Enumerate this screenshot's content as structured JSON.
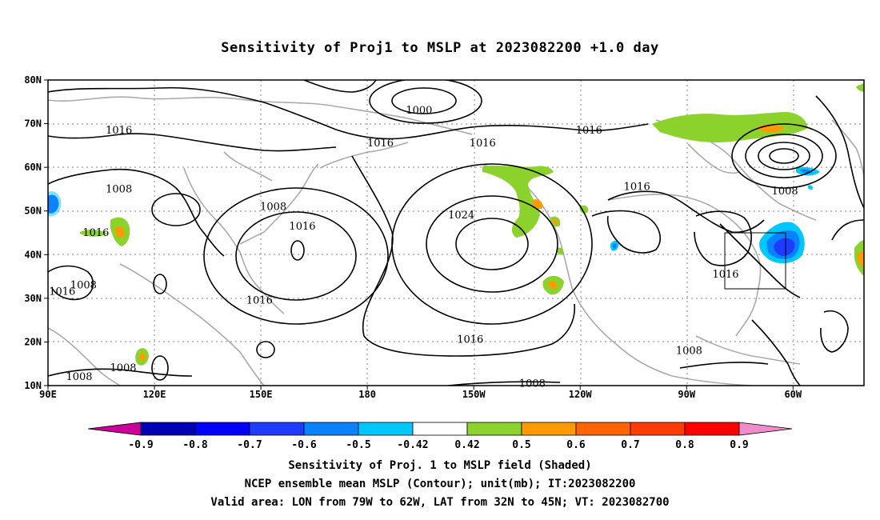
{
  "title": "Sensitivity of Proj1 to MSLP at 2023082200 +1.0 day",
  "lat_labels": [
    "80N",
    "70N",
    "60N",
    "50N",
    "40N",
    "30N",
    "20N",
    "10N"
  ],
  "lon_labels": [
    "90E",
    "120E",
    "150E",
    "180",
    "150W",
    "120W",
    "90W",
    "60W"
  ],
  "contour_labels": [
    {
      "text": "1000",
      "lon": 194.6,
      "lat": 73.0
    },
    {
      "text": "1016",
      "lon": 110.0,
      "lat": 68.5
    },
    {
      "text": "1016",
      "lon": 183.7,
      "lat": 65.5
    },
    {
      "text": "1016",
      "lon": 212.5,
      "lat": 65.5
    },
    {
      "text": "1016",
      "lon": 242.5,
      "lat": 68.5
    },
    {
      "text": "1008",
      "lon": 110.0,
      "lat": 55.0
    },
    {
      "text": "1008",
      "lon": 153.5,
      "lat": 51.0
    },
    {
      "text": "1016",
      "lon": 161.7,
      "lat": 46.5
    },
    {
      "text": "1016",
      "lon": 103.5,
      "lat": 45.0
    },
    {
      "text": "1024",
      "lon": 206.5,
      "lat": 49.0
    },
    {
      "text": "1016",
      "lon": 256.0,
      "lat": 55.5
    },
    {
      "text": "1008",
      "lon": 297.7,
      "lat": 54.5
    },
    {
      "text": "1016",
      "lon": 149.6,
      "lat": 29.5
    },
    {
      "text": "1016",
      "lon": 94.0,
      "lat": 31.5
    },
    {
      "text": "1008",
      "lon": 100.0,
      "lat": 33.0
    },
    {
      "text": "1016",
      "lon": 281.0,
      "lat": 35.5
    },
    {
      "text": "1016",
      "lon": 209.0,
      "lat": 20.5
    },
    {
      "text": "1008",
      "lon": 270.7,
      "lat": 18.0
    },
    {
      "text": "1008",
      "lon": 111.2,
      "lat": 14.0
    },
    {
      "text": "1008",
      "lon": 98.8,
      "lat": 12.0
    },
    {
      "text": "1008",
      "lon": 226.5,
      "lat": 10.5
    }
  ],
  "valid_box": {
    "lon_min": 281,
    "lon_max": 298,
    "lat_min": 32,
    "lat_max": 45
  },
  "colorbar": {
    "colors": [
      "#cc0099",
      "#0000b4",
      "#0000ff",
      "#1e3cff",
      "#0a82ff",
      "#00c8ff",
      "#ffffff",
      "#8cd22d",
      "#ff9b00",
      "#ff6400",
      "#ff3c00",
      "#ff0000",
      "#f08ccc"
    ],
    "labels": [
      "-0.9",
      "-0.8",
      "-0.7",
      "-0.6",
      "-0.5",
      "-0.42",
      "0.42",
      "0.5",
      "0.6",
      "0.7",
      "0.8",
      "0.9"
    ]
  },
  "footer": {
    "line1": "Sensitivity of Proj. 1 to MSLP field (Shaded)",
    "line2": "NCEP ensemble mean MSLP (Contour); unit(mb); IT:2023082200",
    "line3": "Valid area: LON from 79W to 62W, LAT from 32N to 45N; VT: 2023082700"
  }
}
